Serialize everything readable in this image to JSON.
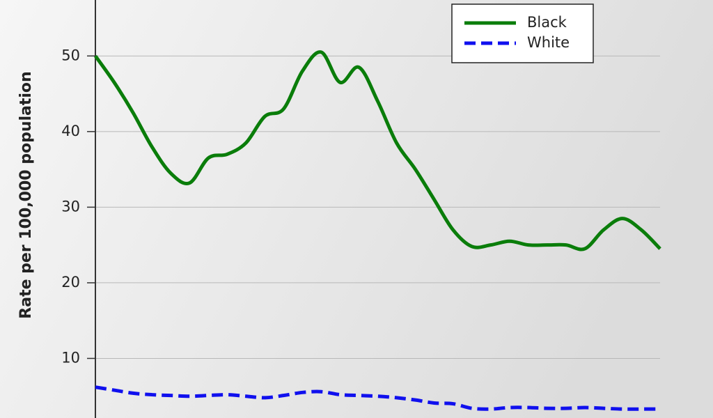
{
  "chart_data": {
    "type": "line",
    "y_label": "Rate per 100,000 population",
    "categories": [
      null,
      null,
      null,
      null,
      null,
      null,
      null,
      null,
      null,
      null,
      null,
      null,
      null,
      null,
      null,
      null,
      null,
      null,
      null,
      null,
      null,
      null,
      null,
      null,
      null,
      null,
      null,
      null,
      null,
      null,
      null
    ],
    "series": [
      {
        "name": "Black",
        "color": "#0a7d0a",
        "dash": "solid",
        "values": [
          50,
          46.5,
          42.5,
          38,
          34.5,
          33.2,
          36.5,
          37,
          38.5,
          42,
          43,
          48,
          50.5,
          46.5,
          48.5,
          44,
          38.5,
          35,
          31,
          27,
          24.8,
          25,
          25.5,
          25,
          25,
          25,
          24.5,
          27,
          28.5,
          27,
          24.5
        ]
      },
      {
        "name": "White",
        "color": "#1010ee",
        "dash": "dashed",
        "values": [
          6.2,
          5.8,
          5.4,
          5.2,
          5.1,
          5.0,
          5.1,
          5.2,
          5.0,
          4.8,
          5.1,
          5.5,
          5.6,
          5.2,
          5.1,
          5.0,
          4.8,
          4.5,
          4.1,
          4.0,
          3.4,
          3.3,
          3.5,
          3.5,
          3.4,
          3.4,
          3.5,
          3.4,
          3.3,
          3.3,
          3.3
        ]
      }
    ],
    "ylim": [
      0,
      57.4
    ],
    "yticks": [
      10,
      20,
      30,
      40,
      50
    ],
    "grid": true,
    "legend": "top-right"
  }
}
